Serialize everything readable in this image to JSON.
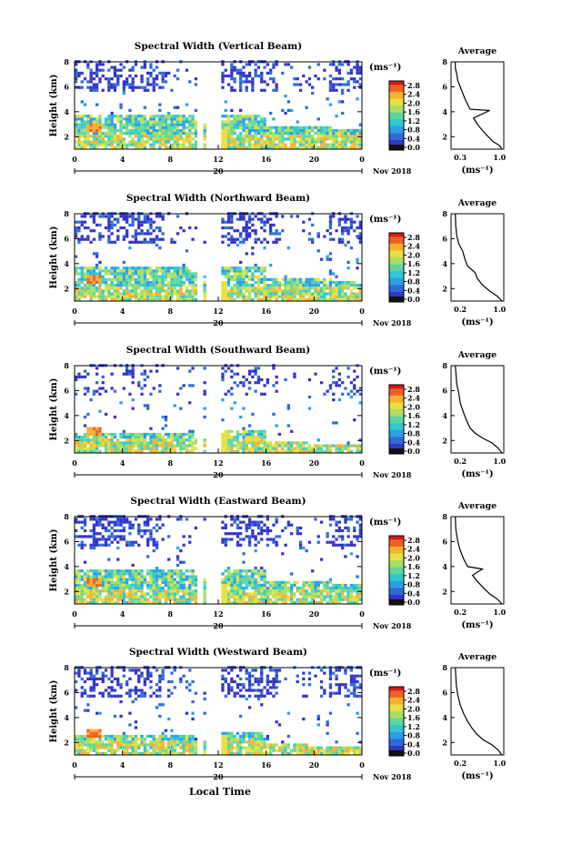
{
  "chart_data": [
    {
      "type": "heatmap",
      "title": "Spectral Width (Vertical Beam)",
      "ylabel": "Height (km)",
      "yticks": [
        "2",
        "4",
        "6",
        "8"
      ],
      "xticks": [
        "0",
        "4",
        "8",
        "12",
        "16",
        "20",
        "0"
      ],
      "day_label": "20",
      "month_label": "Nov 2018",
      "ylim": [
        1,
        8
      ],
      "xlim": [
        0,
        24
      ],
      "colorbar": {
        "label": "(ms⁻¹)",
        "ticks": [
          "2.8",
          "2.4",
          "2.0",
          "1.6",
          "1.2",
          "0.8",
          "0.4",
          "0.0"
        ],
        "range": [
          0,
          2.8
        ]
      },
      "average": {
        "title": "Average",
        "xlabel": "(ms⁻¹)",
        "xticks": [
          "0.3",
          "1.0"
        ],
        "yticks": [
          "2",
          "4",
          "6",
          "8"
        ],
        "profile": [
          [
            1.0,
            1.0
          ],
          [
            0.95,
            1.3
          ],
          [
            0.82,
            1.6
          ],
          [
            0.72,
            2.0
          ],
          [
            0.6,
            2.5
          ],
          [
            0.5,
            3.0
          ],
          [
            0.42,
            3.5
          ],
          [
            0.75,
            4.1
          ],
          [
            0.35,
            4.2
          ],
          [
            0.3,
            4.6
          ],
          [
            0.25,
            5.0
          ],
          [
            0.2,
            5.5
          ],
          [
            0.15,
            6.0
          ],
          [
            0.1,
            6.5
          ],
          [
            0.08,
            7.0
          ],
          [
            0.05,
            7.5
          ],
          [
            0.05,
            8.0
          ]
        ]
      },
      "note": "Spectral width time-height cross-section, 0-24 h local time, 1-8 km height"
    },
    {
      "type": "heatmap",
      "title": "Spectral Width (Northward Beam)",
      "ylabel": "Height (km)",
      "yticks": [
        "2",
        "4",
        "6",
        "8"
      ],
      "xticks": [
        "0",
        "4",
        "8",
        "12",
        "16",
        "20",
        "0"
      ],
      "day_label": "20",
      "month_label": "Nov 2018",
      "ylim": [
        1,
        8
      ],
      "xlim": [
        0,
        24
      ],
      "colorbar": {
        "label": "(ms⁻¹)",
        "ticks": [
          "2.8",
          "2.4",
          "2.0",
          "1.6",
          "1.2",
          "0.8",
          "0.4",
          "0.0"
        ],
        "range": [
          0,
          2.8
        ]
      },
      "average": {
        "title": "Average",
        "xlabel": "(ms⁻¹)",
        "xticks": [
          "0.2",
          "1.0"
        ],
        "yticks": [
          "2",
          "4",
          "6",
          "8"
        ],
        "profile": [
          [
            1.0,
            1.0
          ],
          [
            0.9,
            1.4
          ],
          [
            0.75,
            1.8
          ],
          [
            0.6,
            2.3
          ],
          [
            0.5,
            2.8
          ],
          [
            0.45,
            3.3
          ],
          [
            0.3,
            3.8
          ],
          [
            0.25,
            4.3
          ],
          [
            0.2,
            5.0
          ],
          [
            0.12,
            5.6
          ],
          [
            0.08,
            6.2
          ],
          [
            0.06,
            7.0
          ],
          [
            0.05,
            8.0
          ]
        ]
      }
    },
    {
      "type": "heatmap",
      "title": "Spectral Width (Southward Beam)",
      "ylabel": "Height (km)",
      "yticks": [
        "2",
        "4",
        "6",
        "8"
      ],
      "xticks": [
        "0",
        "4",
        "8",
        "12",
        "16",
        "20",
        "0"
      ],
      "day_label": "20",
      "month_label": "Nov 2018",
      "ylim": [
        1,
        8
      ],
      "xlim": [
        0,
        24
      ],
      "colorbar": {
        "label": "(ms⁻¹)",
        "ticks": [
          "2.8",
          "2.4",
          "2.0",
          "1.6",
          "1.2",
          "0.8",
          "0.4",
          "0.0"
        ],
        "range": [
          0,
          2.8
        ]
      },
      "average": {
        "title": "Average",
        "xlabel": "(ms⁻¹)",
        "xticks": [
          "0.2",
          "1.0"
        ],
        "yticks": [
          "2",
          "4",
          "6",
          "8"
        ],
        "profile": [
          [
            1.0,
            1.0
          ],
          [
            0.92,
            1.4
          ],
          [
            0.8,
            1.8
          ],
          [
            0.6,
            2.2
          ],
          [
            0.45,
            2.6
          ],
          [
            0.35,
            3.0
          ],
          [
            0.28,
            3.6
          ],
          [
            0.22,
            4.2
          ],
          [
            0.15,
            5.0
          ],
          [
            0.12,
            5.8
          ],
          [
            0.08,
            6.5
          ],
          [
            0.05,
            8.0
          ]
        ]
      }
    },
    {
      "type": "heatmap",
      "title": "Spectral Width (Eastward Beam)",
      "ylabel": "Height (km)",
      "yticks": [
        "2",
        "4",
        "6",
        "8"
      ],
      "xticks": [
        "0",
        "4",
        "8",
        "12",
        "16",
        "20",
        "0"
      ],
      "day_label": "20",
      "month_label": "Nov 2018",
      "ylim": [
        1,
        8
      ],
      "xlim": [
        0,
        24
      ],
      "colorbar": {
        "label": "(ms⁻¹)",
        "ticks": [
          "2.8",
          "2.4",
          "2.0",
          "1.6",
          "1.2",
          "0.8",
          "0.4",
          "0.0"
        ],
        "range": [
          0,
          2.8
        ]
      },
      "average": {
        "title": "Average",
        "xlabel": "(ms⁻¹)",
        "xticks": [
          "0.2",
          "1.0"
        ],
        "yticks": [
          "2",
          "4",
          "6",
          "8"
        ],
        "profile": [
          [
            1.0,
            1.0
          ],
          [
            0.9,
            1.4
          ],
          [
            0.75,
            1.8
          ],
          [
            0.62,
            2.3
          ],
          [
            0.5,
            2.8
          ],
          [
            0.4,
            3.3
          ],
          [
            0.6,
            3.8
          ],
          [
            0.3,
            4.0
          ],
          [
            0.22,
            4.6
          ],
          [
            0.15,
            5.3
          ],
          [
            0.1,
            6.0
          ],
          [
            0.06,
            7.0
          ],
          [
            0.05,
            8.0
          ]
        ]
      }
    },
    {
      "type": "heatmap",
      "title": "Spectral Width (Westward Beam)",
      "ylabel": "Height (km)",
      "yticks": [
        "2",
        "4",
        "6",
        "8"
      ],
      "xticks": [
        "0",
        "4",
        "8",
        "12",
        "16",
        "20",
        "0"
      ],
      "day_label": "20",
      "month_label": "Nov 2018",
      "ylim": [
        1,
        8
      ],
      "xlim": [
        0,
        24
      ],
      "colorbar": {
        "label": "(ms⁻¹)",
        "ticks": [
          "2.8",
          "2.4",
          "2.0",
          "1.6",
          "1.2",
          "0.8",
          "0.4",
          "0.0"
        ],
        "range": [
          0,
          2.8
        ]
      },
      "average": {
        "title": "Average",
        "xlabel": "(ms⁻¹)",
        "xticks": [
          "0.2",
          "1.0"
        ],
        "yticks": [
          "2",
          "4",
          "6",
          "8"
        ],
        "profile": [
          [
            1.0,
            1.0
          ],
          [
            0.92,
            1.4
          ],
          [
            0.8,
            1.8
          ],
          [
            0.62,
            2.2
          ],
          [
            0.48,
            2.7
          ],
          [
            0.38,
            3.2
          ],
          [
            0.3,
            3.7
          ],
          [
            0.22,
            4.3
          ],
          [
            0.15,
            5.0
          ],
          [
            0.1,
            5.8
          ],
          [
            0.07,
            6.6
          ],
          [
            0.05,
            8.0
          ]
        ]
      }
    }
  ],
  "xlabel": "Local Time",
  "colors": {
    "scale": [
      "#2b2b8f",
      "#3434c8",
      "#2f6bd8",
      "#2aa0e6",
      "#30c8d0",
      "#5fd6a0",
      "#a8e060",
      "#e8e040",
      "#f8b030",
      "#f06020",
      "#d81818"
    ]
  }
}
